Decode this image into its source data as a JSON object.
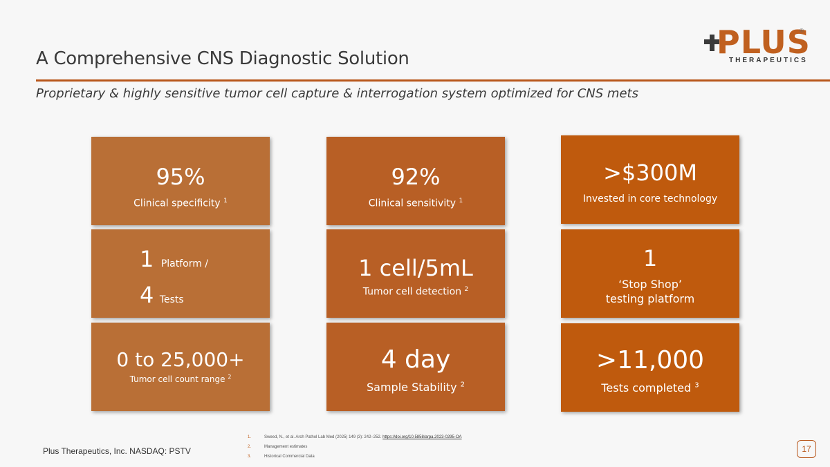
{
  "header": {
    "title": "A Comprehensive CNS Diagnostic Solution",
    "subtitle": "Proprietary & highly sensitive tumor cell capture & interrogation system optimized for CNS mets"
  },
  "logo": {
    "word": "PLUS",
    "sub": "THERAPEUTICS",
    "reg": "®"
  },
  "colors": {
    "accent": "#b8561a",
    "tile_col1": "#b96f36",
    "tile_col2": "#b85f25",
    "tile_col3": "#bf5a0d"
  },
  "tiles": {
    "r1c1": {
      "value": "95%",
      "label": "Clinical specificity",
      "sup": "1"
    },
    "r1c2": {
      "value": "92%",
      "label": "Clinical sensitivity",
      "sup": "1"
    },
    "r1c3": {
      "value": ">$300M",
      "label": "Invested in core technology"
    },
    "r2c1": {
      "num1": "1",
      "text1": "Platform /",
      "num2": "4",
      "text2": "Tests"
    },
    "r2c2": {
      "value": "1 cell/5mL",
      "label": "Tumor cell detection",
      "sup": "2"
    },
    "r2c3": {
      "value": "1",
      "line1": "‘Stop Shop’",
      "line2": "testing platform"
    },
    "r3c1": {
      "value": "0 to 25,000+",
      "label": "Tumor cell count range",
      "sup": "2"
    },
    "r3c2": {
      "value": "4 day",
      "label": "Sample Stability",
      "sup": "2"
    },
    "r3c3": {
      "value": ">11,000",
      "label": "Tests completed",
      "sup": "3"
    }
  },
  "footer": {
    "company": "Plus Therapeutics, Inc.  NASDAQ:  PSTV",
    "page": "17",
    "notes": [
      {
        "n": "1.",
        "text": "Sweed, N., et al. Arch Pathol Lab Med (2025) 149 (3): 242–252. ",
        "link": "https://doi.org/10.5858/arpa.2023-0295-OA"
      },
      {
        "n": "2.",
        "text": "Management estimates"
      },
      {
        "n": "3.",
        "text": "Historical Commercial Data"
      }
    ]
  }
}
